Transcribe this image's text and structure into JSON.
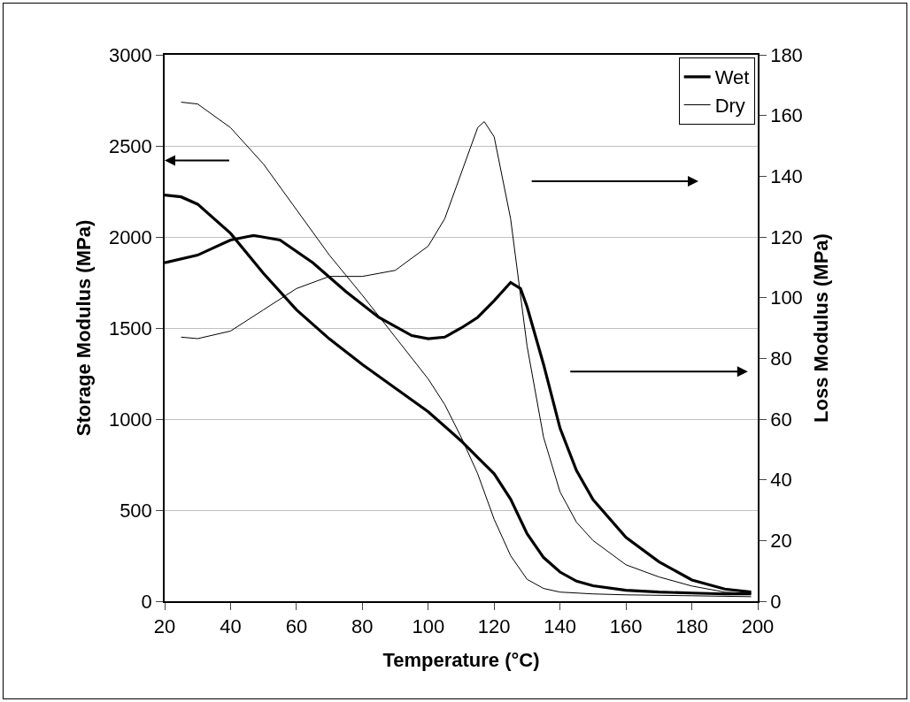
{
  "chart_data": {
    "type": "line",
    "xlabel": "Temperature (°C)",
    "ylabel": "Storage Modulus (MPa)",
    "y2label": "Loss Modulus (MPa)",
    "xlim": [
      20,
      200
    ],
    "xticks": [
      20,
      40,
      60,
      80,
      100,
      120,
      140,
      160,
      180,
      200
    ],
    "ylim": [
      0,
      3000
    ],
    "yticks": [
      0,
      500,
      1000,
      1500,
      2000,
      2500,
      3000
    ],
    "y2lim": [
      0,
      180
    ],
    "y2ticks": [
      0,
      20,
      40,
      60,
      80,
      100,
      120,
      140,
      160,
      180
    ],
    "grid": "y",
    "legend": "top right",
    "marker": "none",
    "line_style": "solid",
    "series": [
      {
        "name": "Wet",
        "color": "#000000",
        "x": [
          20,
          25,
          30,
          40,
          50,
          60,
          70,
          80,
          90,
          100,
          110,
          115,
          120,
          125,
          130,
          135,
          140,
          145,
          150,
          160,
          170,
          180,
          190,
          198
        ],
        "values": [
          2230,
          2220,
          2180,
          2020,
          1800,
          1600,
          1440,
          1300,
          1170,
          1040,
          880,
          790,
          700,
          560,
          370,
          240,
          160,
          110,
          85,
          60,
          50,
          45,
          40,
          40
        ]
      },
      {
        "name": "Dry",
        "color": "#000000",
        "x": [
          25,
          30,
          40,
          50,
          60,
          70,
          80,
          90,
          100,
          105,
          110,
          115,
          120,
          125,
          130,
          135,
          140,
          150,
          160,
          180,
          198
        ],
        "values": [
          2740,
          2730,
          2600,
          2400,
          2150,
          1900,
          1680,
          1450,
          1220,
          1080,
          900,
          700,
          450,
          250,
          120,
          70,
          50,
          40,
          35,
          30,
          25
        ]
      },
      {
        "color": "#000000",
        "axis": "y2",
        "x": [
          20,
          30,
          40,
          47,
          55,
          65,
          75,
          85,
          95,
          100,
          105,
          110,
          115,
          120,
          125,
          128,
          130,
          135,
          140,
          145,
          150,
          160,
          170,
          180,
          190,
          198
        ],
        "values": [
          111.5,
          114,
          119,
          120.5,
          119,
          111.5,
          102,
          93.5,
          87.5,
          86.5,
          87,
          90,
          93.5,
          99,
          105,
          103,
          97,
          78,
          57,
          43,
          33.5,
          21,
          13,
          7,
          4,
          3
        ]
      },
      {
        "color": "#000000",
        "axis": "y2",
        "x": [
          25,
          30,
          40,
          50,
          60,
          70,
          80,
          90,
          100,
          105,
          110,
          115,
          117,
          120,
          125,
          130,
          135,
          140,
          145,
          150,
          160,
          170,
          180,
          190,
          198
        ],
        "values": [
          87,
          86.5,
          89,
          96,
          103,
          107,
          107,
          109,
          117,
          126,
          141,
          156,
          158,
          153,
          126,
          84,
          54,
          36,
          26,
          20,
          12,
          8,
          5,
          3,
          2.5
        ]
      }
    ]
  }
}
